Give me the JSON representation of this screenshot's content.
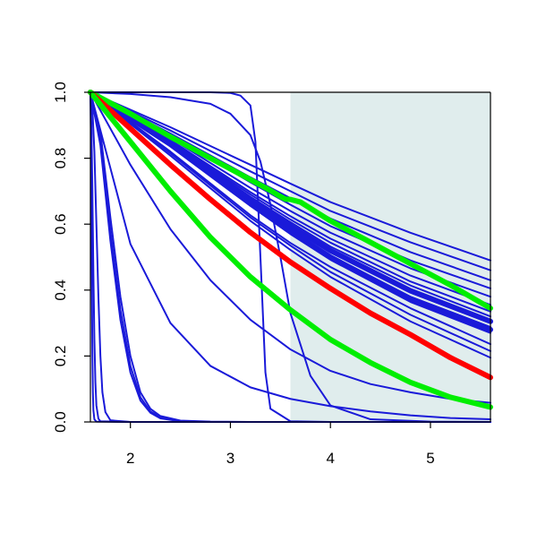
{
  "chart_data": {
    "type": "line",
    "title": "",
    "xlabel": "",
    "ylabel": "",
    "xlim": [
      1.6,
      5.6
    ],
    "ylim": [
      0.0,
      1.0
    ],
    "x_ticks": [
      2,
      3,
      4,
      5
    ],
    "x_tick_labels": [
      "2",
      "3",
      "4",
      "5"
    ],
    "y_ticks": [
      0.0,
      0.2,
      0.4,
      0.6,
      0.8,
      1.0
    ],
    "y_tick_labels": [
      "0.0",
      "0.2",
      "0.4",
      "0.6",
      "0.8",
      "1.0"
    ],
    "grid": false,
    "legend": "none",
    "shaded_region": {
      "x_from": 3.6,
      "x_to": 5.6,
      "color": "#e0eded"
    },
    "colors": {
      "blue": "#1a1ad9",
      "red": "#ff0000",
      "green": "#00ee00",
      "shade": "#e0eded"
    },
    "series": [
      {
        "color": "blue",
        "x": [
          1.6,
          2.4,
          3.2,
          3.6,
          4.0,
          4.8,
          5.6
        ],
        "values": [
          1.0,
          0.894,
          0.78,
          0.723,
          0.667,
          0.574,
          0.49
        ]
      },
      {
        "color": "blue",
        "x": [
          1.6,
          2.4,
          3.2,
          3.6,
          4.0,
          4.8,
          5.6
        ],
        "values": [
          1.0,
          0.884,
          0.76,
          0.7,
          0.64,
          0.545,
          0.46
        ]
      },
      {
        "color": "blue",
        "x": [
          1.6,
          2.4,
          3.2,
          3.6,
          4.0,
          4.8,
          5.6
        ],
        "values": [
          1.0,
          0.875,
          0.742,
          0.679,
          0.617,
          0.515,
          0.43
        ]
      },
      {
        "color": "blue",
        "x": [
          1.6,
          2.4,
          3.2,
          3.6,
          4.0,
          4.8,
          5.6
        ],
        "values": [
          1.0,
          0.87,
          0.727,
          0.659,
          0.594,
          0.49,
          0.405
        ]
      },
      {
        "color": "blue",
        "x": [
          1.6,
          2.4,
          3.2,
          3.6,
          4.0,
          4.8,
          5.6
        ],
        "values": [
          1.0,
          0.861,
          0.71,
          0.64,
          0.574,
          0.466,
          0.38
        ]
      },
      {
        "color": "blue",
        "x": [
          1.6,
          2.4,
          3.2,
          3.6,
          4.0,
          4.8,
          5.6
        ],
        "values": [
          1.0,
          0.855,
          0.697,
          0.624,
          0.556,
          0.444,
          0.355
        ]
      },
      {
        "color": "blue",
        "x": [
          1.6,
          2.4,
          3.2,
          3.6,
          4.0,
          4.8,
          5.6
        ],
        "values": [
          1.0,
          0.853,
          0.69,
          0.614,
          0.544,
          0.426,
          0.335
        ]
      },
      {
        "color": "blue",
        "x": [
          1.6,
          2.4,
          3.2,
          3.6,
          4.0,
          4.8,
          5.6
        ],
        "values": [
          1.0,
          0.85,
          0.683,
          0.606,
          0.532,
          0.414,
          0.32
        ]
      },
      {
        "color": "blue",
        "x": [
          1.6,
          2.4,
          3.2,
          3.6,
          4.0,
          4.8,
          5.6
        ],
        "values": [
          1.0,
          0.847,
          0.677,
          0.598,
          0.524,
          0.403,
          0.31
        ]
      },
      {
        "color": "blue",
        "x": [
          1.6,
          2.4,
          3.2,
          3.6,
          4.0,
          4.8,
          5.6
        ],
        "values": [
          1.0,
          0.845,
          0.672,
          0.591,
          0.516,
          0.393,
          0.3
        ]
      },
      {
        "color": "blue",
        "x": [
          1.6,
          2.4,
          3.2,
          3.6,
          4.0,
          4.8,
          5.6
        ],
        "values": [
          1.0,
          0.843,
          0.665,
          0.582,
          0.505,
          0.38,
          0.288
        ]
      },
      {
        "color": "blue",
        "x": [
          1.6,
          2.4,
          3.2,
          3.6,
          4.0,
          4.8,
          5.6
        ],
        "values": [
          1.0,
          0.838,
          0.656,
          0.57,
          0.492,
          0.364,
          0.27
        ]
      },
      {
        "color": "blue",
        "x": [
          1.6,
          2.4,
          3.2,
          3.6,
          4.0,
          4.8,
          5.6
        ],
        "values": [
          1.0,
          0.82,
          0.627,
          0.543,
          0.47,
          0.345,
          0.236
        ]
      },
      {
        "color": "blue",
        "x": [
          1.6,
          2.4,
          3.2,
          3.6,
          4.0,
          4.8,
          5.6
        ],
        "values": [
          1.0,
          0.815,
          0.62,
          0.535,
          0.455,
          0.325,
          0.215
        ]
      },
      {
        "color": "blue",
        "x": [
          1.6,
          2.4,
          3.2,
          3.6,
          4.0,
          4.8,
          5.6
        ],
        "values": [
          1.0,
          0.808,
          0.61,
          0.522,
          0.44,
          0.305,
          0.195
        ]
      },
      {
        "color": "blue",
        "x": [
          1.6,
          2.0,
          2.4,
          2.8,
          3.2,
          3.6,
          4.0,
          4.4,
          4.8,
          5.2,
          5.6
        ],
        "values": [
          1.0,
          0.78,
          0.585,
          0.43,
          0.31,
          0.22,
          0.155,
          0.115,
          0.09,
          0.07,
          0.058
        ]
      },
      {
        "color": "blue",
        "x": [
          1.6,
          2.0,
          2.4,
          2.8,
          3.2,
          3.6,
          4.0,
          4.4,
          4.8,
          5.2,
          5.6
        ],
        "values": [
          1.0,
          0.54,
          0.3,
          0.17,
          0.105,
          0.07,
          0.048,
          0.032,
          0.02,
          0.012,
          0.008
        ]
      },
      {
        "color": "blue",
        "x": [
          1.6,
          2.0,
          2.4,
          2.8,
          3.0,
          3.2,
          3.3,
          3.4,
          3.5,
          3.6,
          3.8,
          4.0,
          4.4,
          5.0,
          5.6
        ],
        "values": [
          1.0,
          0.995,
          0.985,
          0.965,
          0.935,
          0.87,
          0.79,
          0.66,
          0.5,
          0.33,
          0.14,
          0.05,
          0.008,
          0.001,
          0.0
        ]
      },
      {
        "color": "blue",
        "x": [
          1.6,
          2.4,
          2.8,
          3.0,
          3.1,
          3.2,
          3.25,
          3.3,
          3.35,
          3.4,
          3.6,
          4.0,
          5.6
        ],
        "values": [
          1.0,
          1.0,
          1.0,
          0.998,
          0.99,
          0.96,
          0.85,
          0.5,
          0.15,
          0.04,
          0.002,
          0.0,
          0.0
        ]
      },
      {
        "color": "blue",
        "x": [
          1.6,
          1.7,
          1.8,
          1.9,
          2.0,
          2.1,
          2.2,
          2.3,
          2.5,
          2.8,
          3.2,
          5.6
        ],
        "values": [
          1.0,
          0.88,
          0.62,
          0.38,
          0.2,
          0.09,
          0.04,
          0.018,
          0.004,
          0.001,
          0.0,
          0.0
        ]
      },
      {
        "color": "blue",
        "x": [
          1.6,
          1.7,
          1.8,
          1.9,
          2.0,
          2.1,
          2.2,
          2.3,
          2.5,
          2.8,
          3.2,
          5.6
        ],
        "values": [
          1.0,
          0.86,
          0.58,
          0.34,
          0.17,
          0.075,
          0.032,
          0.014,
          0.003,
          0.0,
          0.0,
          0.0
        ]
      },
      {
        "color": "blue",
        "x": [
          1.6,
          1.7,
          1.8,
          1.9,
          2.0,
          2.1,
          2.2,
          2.3,
          2.5,
          2.8,
          3.2,
          5.6
        ],
        "values": [
          1.0,
          0.84,
          0.55,
          0.31,
          0.15,
          0.065,
          0.028,
          0.011,
          0.002,
          0.0,
          0.0,
          0.0
        ]
      },
      {
        "color": "blue",
        "x": [
          1.6,
          1.62,
          1.64,
          1.66,
          1.68,
          1.7,
          1.72,
          1.75,
          1.8,
          2.0,
          5.6
        ],
        "values": [
          1.0,
          0.95,
          0.82,
          0.6,
          0.38,
          0.2,
          0.09,
          0.03,
          0.005,
          0.0,
          0.0
        ]
      },
      {
        "color": "blue",
        "x": [
          1.6,
          1.61,
          1.62,
          1.63,
          1.64,
          1.65,
          1.66,
          1.68,
          1.7,
          2.0,
          5.6
        ],
        "values": [
          1.0,
          0.9,
          0.7,
          0.45,
          0.25,
          0.12,
          0.05,
          0.01,
          0.002,
          0.0,
          0.0
        ]
      },
      {
        "color": "blue",
        "x": [
          1.6,
          1.605,
          1.61,
          1.615,
          1.62,
          1.625,
          1.63,
          1.64,
          1.66,
          2.0,
          5.6
        ],
        "values": [
          1.0,
          0.88,
          0.65,
          0.4,
          0.2,
          0.09,
          0.035,
          0.008,
          0.001,
          0.0,
          0.0
        ]
      },
      {
        "color": "blue",
        "x": [
          1.6,
          2.4,
          3.2,
          3.6,
          4.0,
          4.8,
          5.6
        ],
        "values": [
          1.0,
          0.842,
          0.662,
          0.577,
          0.5,
          0.372,
          0.28
        ],
        "width": 6
      },
      {
        "color": "blue",
        "x": [
          1.6,
          2.4,
          3.2,
          3.6,
          4.0,
          4.8,
          5.6
        ],
        "values": [
          1.0,
          0.848,
          0.675,
          0.594,
          0.52,
          0.398,
          0.305
        ],
        "width": 6
      },
      {
        "color": "green",
        "x": [
          1.6,
          2.0,
          2.4,
          2.8,
          3.2,
          3.4,
          3.5,
          3.55,
          3.6,
          3.7,
          4.0,
          4.4,
          4.8,
          5.2,
          5.6
        ],
        "values": [
          1.0,
          0.935,
          0.865,
          0.8,
          0.735,
          0.702,
          0.684,
          0.676,
          0.675,
          0.667,
          0.61,
          0.545,
          0.48,
          0.415,
          0.345
        ],
        "width": 6
      },
      {
        "color": "red",
        "x": [
          1.6,
          2.0,
          2.4,
          2.8,
          3.2,
          3.6,
          4.0,
          4.4,
          4.8,
          5.2,
          5.6
        ],
        "values": [
          1.0,
          0.89,
          0.78,
          0.675,
          0.575,
          0.485,
          0.405,
          0.33,
          0.265,
          0.195,
          0.135
        ],
        "width": 6
      },
      {
        "color": "green",
        "x": [
          1.6,
          2.0,
          2.4,
          2.8,
          3.2,
          3.6,
          4.0,
          4.4,
          4.8,
          5.2,
          5.6
        ],
        "values": [
          1.0,
          0.85,
          0.7,
          0.56,
          0.44,
          0.34,
          0.25,
          0.18,
          0.12,
          0.075,
          0.045
        ],
        "width": 6
      }
    ]
  }
}
